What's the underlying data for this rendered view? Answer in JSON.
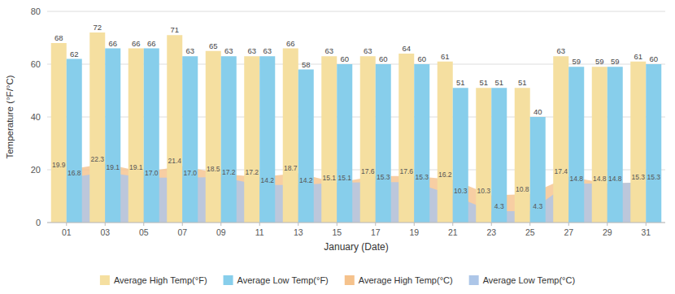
{
  "chart_data": {
    "type": "bar",
    "x_label": "January (Date)",
    "y_label": "Temperature (°F/°C)",
    "x": [
      1,
      3,
      5,
      7,
      9,
      11,
      13,
      15,
      17,
      19,
      21,
      23,
      25,
      27,
      29,
      31
    ],
    "xlim": [
      0,
      32
    ],
    "xticks": [
      {
        "value": 1,
        "label": "01"
      },
      {
        "value": 3,
        "label": "03"
      },
      {
        "value": 5,
        "label": "05"
      },
      {
        "value": 7,
        "label": "07"
      },
      {
        "value": 9,
        "label": "09"
      },
      {
        "value": 11,
        "label": "11"
      },
      {
        "value": 13,
        "label": "13"
      },
      {
        "value": 15,
        "label": "15"
      },
      {
        "value": 17,
        "label": "17"
      },
      {
        "value": 19,
        "label": "19"
      },
      {
        "value": 21,
        "label": "21"
      },
      {
        "value": 23,
        "label": "23"
      },
      {
        "value": 25,
        "label": "25"
      },
      {
        "value": 27,
        "label": "27"
      },
      {
        "value": 29,
        "label": "29"
      },
      {
        "value": 31,
        "label": "31"
      }
    ],
    "ylim": [
      0,
      80
    ],
    "yticks": [
      0,
      20,
      40,
      60,
      80
    ],
    "grid": true,
    "legend": "bottom",
    "data_labels": true,
    "series": [
      {
        "name": "Average High Temp(°F)",
        "type": "bar",
        "color": "#F5DFA0",
        "values": [
          68,
          72,
          66,
          71,
          65,
          63,
          66,
          63,
          63,
          64,
          61,
          51,
          51,
          63,
          59,
          61
        ]
      },
      {
        "name": "Average Low Temp(°F)",
        "type": "bar",
        "color": "#87CEEB",
        "values": [
          62,
          66,
          66,
          63,
          63,
          63,
          58,
          60,
          60,
          60,
          51,
          51,
          40,
          59,
          59,
          60
        ]
      },
      {
        "name": "Average High Temp(°C)",
        "type": "area",
        "color": "#F5C28C",
        "values": [
          19.9,
          22.3,
          19.1,
          21.4,
          18.5,
          17.2,
          18.7,
          15.1,
          17.6,
          17.6,
          16.2,
          10.3,
          10.8,
          17.4,
          14.8,
          15.3
        ],
        "value_labels": [
          "19.9",
          "22.3",
          "19.1",
          "21.4",
          "18.5",
          "17.2",
          "18.7",
          "15.1",
          "17.6",
          "17.6",
          "16.2",
          "10.3",
          "10.8",
          "17.4",
          "14.8",
          "15.3"
        ]
      },
      {
        "name": "Average Low Temp(°C)",
        "type": "area",
        "color": "#ADC6E8",
        "values": [
          16.8,
          19.1,
          17.0,
          17.0,
          17.2,
          14.2,
          14.2,
          15.1,
          15.3,
          15.3,
          10.3,
          4.3,
          4.3,
          14.8,
          14.8,
          15.3
        ],
        "value_labels": [
          "16.8",
          "19.1",
          "17.0",
          "17.0",
          "17.2",
          "14.2",
          "14.2",
          "15.1",
          "15.3",
          "15.3",
          "10.3",
          "4.3",
          "4.3",
          "14.8",
          "14.8",
          "15.3"
        ]
      }
    ]
  }
}
